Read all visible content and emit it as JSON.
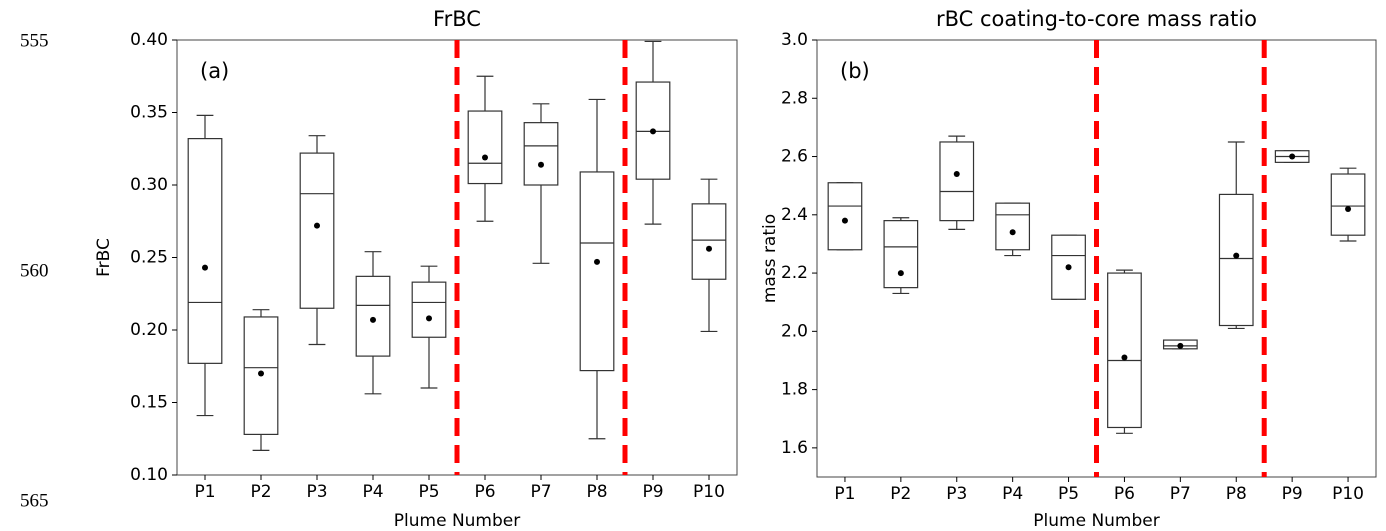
{
  "line_numbers": [
    "555",
    "560",
    "565"
  ],
  "chart_data": [
    {
      "type": "box",
      "title": "FrBC",
      "annotation": "(a)",
      "y_label": "FrBC",
      "x_label": "Plume Number",
      "categories": [
        "P1",
        "P2",
        "P3",
        "P4",
        "P5",
        "P6",
        "P7",
        "P8",
        "P9",
        "P10"
      ],
      "whisker_low": [
        0.141,
        0.117,
        0.19,
        0.156,
        0.16,
        0.275,
        0.246,
        0.125,
        0.273,
        0.199
      ],
      "q1": [
        0.177,
        0.128,
        0.215,
        0.182,
        0.195,
        0.301,
        0.3,
        0.172,
        0.304,
        0.235
      ],
      "median": [
        0.219,
        0.174,
        0.294,
        0.217,
        0.219,
        0.315,
        0.327,
        0.26,
        0.337,
        0.262
      ],
      "q3": [
        0.332,
        0.209,
        0.322,
        0.237,
        0.233,
        0.351,
        0.343,
        0.309,
        0.371,
        0.287
      ],
      "whisker_high": [
        0.348,
        0.214,
        0.334,
        0.254,
        0.244,
        0.375,
        0.356,
        0.359,
        0.399,
        0.304
      ],
      "mean": [
        0.243,
        0.17,
        0.272,
        0.207,
        0.208,
        0.319,
        0.314,
        0.247,
        0.337,
        0.256
      ],
      "xlim": [
        0.5,
        10.5
      ],
      "dividers": [
        5.5,
        8.5
      ],
      "divider_color": "#ff0000",
      "box_color": "#333333",
      "mean_color": "#000000",
      "ylim": [
        0.1,
        0.4
      ],
      "yticks": [
        {
          "value": 0.1,
          "label": "0.10"
        },
        0.15,
        {
          "value": 0.2,
          "label": "0.20"
        },
        0.25,
        {
          "value": 0.3,
          "label": "0.30"
        },
        0.35,
        {
          "value": 0.4,
          "label": "0.40"
        }
      ]
    },
    {
      "type": "box",
      "title": "rBC coating-to-core mass ratio",
      "annotation": "(b)",
      "y_label": "mass ratio",
      "x_label": "Plume Number",
      "categories": [
        "P1",
        "P2",
        "P3",
        "P4",
        "P5",
        "P6",
        "P7",
        "P8",
        "P9",
        "P10"
      ],
      "whisker_low": [
        2.28,
        2.13,
        2.35,
        2.26,
        2.11,
        1.65,
        1.94,
        2.01,
        2.58,
        2.31
      ],
      "q1": [
        2.28,
        2.15,
        2.38,
        2.28,
        2.11,
        1.67,
        1.94,
        2.02,
        2.58,
        2.33
      ],
      "median": [
        2.43,
        2.29,
        2.48,
        2.4,
        2.26,
        1.9,
        1.95,
        2.25,
        2.6,
        2.43
      ],
      "q3": [
        2.51,
        2.38,
        2.65,
        2.44,
        2.33,
        2.2,
        1.97,
        2.47,
        2.62,
        2.54
      ],
      "whisker_high": [
        2.51,
        2.39,
        2.67,
        2.44,
        2.33,
        2.21,
        1.97,
        2.65,
        2.62,
        2.56
      ],
      "mean": [
        2.38,
        2.2,
        2.54,
        2.34,
        2.22,
        1.91,
        1.95,
        2.26,
        2.6,
        2.42
      ],
      "xlim": [
        0.5,
        10.5
      ],
      "dividers": [
        5.5,
        8.5
      ],
      "divider_color": "#ff0000",
      "box_color": "#333333",
      "mean_color": "#000000",
      "ylim": [
        1.5,
        3.0
      ],
      "yticks": [
        1.6,
        1.8,
        {
          "value": 2.0,
          "label": "2.0"
        },
        2.2,
        2.4,
        2.6,
        2.8,
        {
          "value": 3.0,
          "label": "3.0"
        }
      ]
    }
  ]
}
